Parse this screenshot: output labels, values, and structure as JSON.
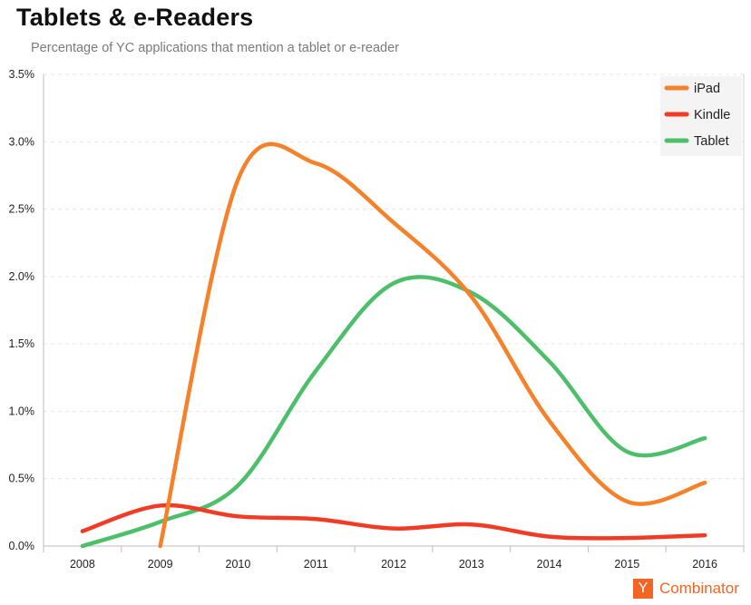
{
  "header": {
    "title": "Tablets & e-Readers",
    "subtitle": "Percentage of YC applications that mention a tablet or e-reader"
  },
  "brand": {
    "mark": "Y",
    "name": "Combinator",
    "color": "#f26522"
  },
  "chart_data": {
    "type": "line",
    "title": "Tablets & e-Readers",
    "subtitle": "Percentage of YC applications that mention a tablet or e-reader",
    "xlabel": "",
    "ylabel": "",
    "categories": [
      "2008",
      "2009",
      "2010",
      "2011",
      "2012",
      "2013",
      "2014",
      "2015",
      "2016"
    ],
    "y_tick_labels": [
      "0.0%",
      "0.5%",
      "1.0%",
      "1.5%",
      "2.0%",
      "2.5%",
      "3.0%",
      "3.5%"
    ],
    "ylim": [
      0,
      3.5
    ],
    "y_unit": "%",
    "grid": "horizontal dashed",
    "legend_position": "top-right",
    "series": [
      {
        "name": "iPad",
        "color": "#f5822a",
        "values": [
          null,
          0.0,
          2.72,
          2.84,
          2.4,
          1.85,
          0.93,
          0.33,
          0.47
        ]
      },
      {
        "name": "Kindle",
        "color": "#f23b24",
        "values": [
          0.11,
          0.3,
          0.22,
          0.2,
          0.13,
          0.16,
          0.07,
          0.06,
          0.08
        ]
      },
      {
        "name": "Tablet",
        "color": "#4dbf6a",
        "values": [
          0.0,
          0.18,
          0.45,
          1.3,
          1.95,
          1.88,
          1.37,
          0.7,
          0.8
        ]
      }
    ]
  }
}
